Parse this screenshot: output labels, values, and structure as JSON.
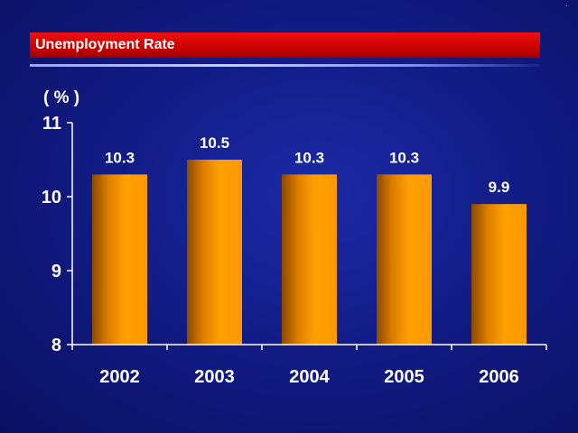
{
  "chart_data": {
    "type": "bar",
    "title": "Unemployment Rate",
    "ylabel": "( % )",
    "xlabel": "",
    "categories": [
      "2002",
      "2003",
      "2004",
      "2005",
      "2006"
    ],
    "values": [
      10.3,
      10.5,
      10.3,
      10.3,
      9.9
    ],
    "data_labels": [
      "10.3",
      "10.5",
      "10.3",
      "10.3",
      "9.9"
    ],
    "ylim": [
      8,
      11
    ],
    "yticks": [
      8,
      9,
      10,
      11
    ],
    "grid": false,
    "legend": "none",
    "colors": {
      "bar_light": "#ff9a00",
      "bar_dark": "#7a3f00",
      "title_bar": "#d00000",
      "background": "#121c86",
      "text": "#ffffff"
    }
  },
  "corner_mark": "·"
}
